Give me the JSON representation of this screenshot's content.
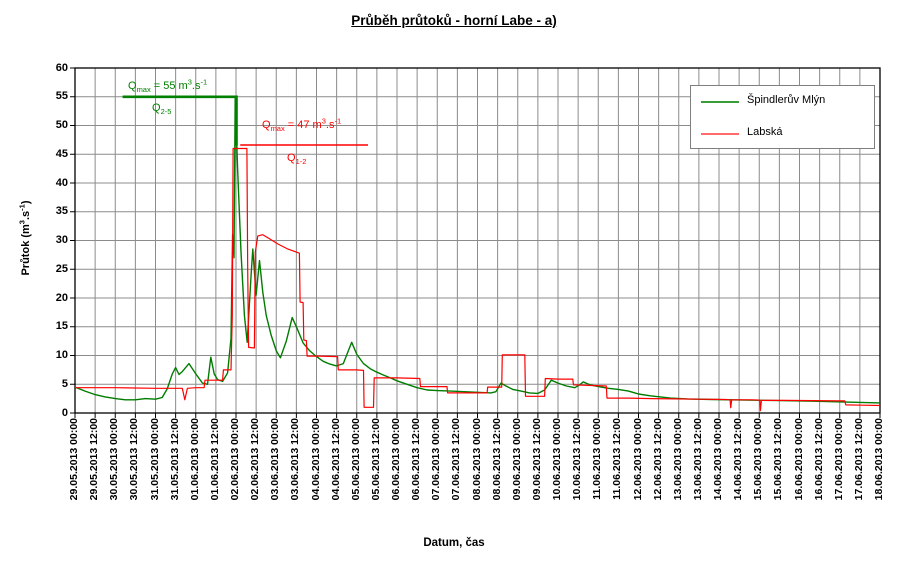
{
  "title": "Průběh průtoků - horní Labe - a)",
  "x_axis": {
    "title": "Datum, čas"
  },
  "y_axis": {
    "title_pre": "Průtok (m",
    "sup1": "3",
    "mid": ".s",
    "sup2": "-1",
    "post": ")"
  },
  "legend": {
    "items": [
      {
        "label": "Špindlerův Mlýn",
        "color": "#3a9d3a"
      },
      {
        "label": "Labská",
        "color": "#ff6b6b"
      }
    ]
  },
  "annotations": {
    "green": {
      "q": "Q",
      "q_sub": "max",
      "eq": " = 55 m",
      "sup1": "3",
      "mid": ".s",
      "sup2": "-1",
      "flow_q": "Q",
      "flow_sub": "2-5",
      "color": "#008000"
    },
    "red": {
      "q": "Q",
      "q_sub": "max",
      "eq": " = 47 m",
      "sup1": "3",
      "mid": ".s",
      "sup2": "-1",
      "flow_q": "Q",
      "flow_sub": "1-2",
      "color": "#ff0000"
    }
  },
  "chart_data": {
    "type": "line",
    "title": "Průběh průtoků - horní Labe - a)",
    "xlabel": "Datum, čas",
    "ylabel": "Průtok (m3.s-1)",
    "x_unit": "hours since 29.05.2013 00:00",
    "x_range_hours": [
      0,
      480
    ],
    "ylim": [
      0,
      60
    ],
    "y_ticks": [
      0,
      5,
      10,
      15,
      20,
      25,
      30,
      35,
      40,
      45,
      50,
      55,
      60
    ],
    "grid": "vertical every 12 h, horizontal every 5 m3.s-1",
    "legend_position": "top-right inside plot",
    "x_labels": [
      "29.05.2013 00:00",
      "29.05.2013 12:00",
      "30.05.2013 00:00",
      "30.05.2013 12:00",
      "31.05.2013 00:00",
      "31.05.2013 12:00",
      "01.06.2013 00:00",
      "01.06.2013 12:00",
      "02.06.2013 00:00",
      "02.06.2013 12:00",
      "03.06.2013 00:00",
      "03.06.2013 12:00",
      "04.06.2013 00:00",
      "04.06.2013 12:00",
      "05.06.2013 00:00",
      "05.06.2013 12:00",
      "06.06.2013 00:00",
      "06.06.2013 12:00",
      "07.06.2013 00:00",
      "07.06.2013 12:00",
      "08.06.2013 00:00",
      "08.06.2013 12:00",
      "09.06.2013 00:00",
      "09.06.2013 12:00",
      "10.06.2013 00:00",
      "10.06.2013 12:00",
      "11.06.2013 00:00",
      "11.06.2013 12:00",
      "12.06.2013 00:00",
      "12.06.2013 12:00",
      "13.06.2013 00:00",
      "13.06.2013 12:00",
      "14.06.2013 00:00",
      "14.06.2013 12:00",
      "15.06.2013 00:00",
      "15.06.2013 12:00",
      "16.06.2013 00:00",
      "16.06.2013 12:00",
      "17.06.2013 00:00",
      "17.06.2013 12:00",
      "18.06.2013 00:00"
    ],
    "series": [
      {
        "name": "Špindlerův Mlýn",
        "color": "#007c00",
        "width": 1.4,
        "max_value": 55,
        "points": [
          [
            0,
            4.5
          ],
          [
            6,
            3.8
          ],
          [
            12,
            3.2
          ],
          [
            18,
            2.8
          ],
          [
            24,
            2.5
          ],
          [
            30,
            2.3
          ],
          [
            36,
            2.3
          ],
          [
            42,
            2.5
          ],
          [
            48,
            2.4
          ],
          [
            52,
            2.7
          ],
          [
            55,
            4.2
          ],
          [
            58,
            6.8
          ],
          [
            60,
            7.9
          ],
          [
            62,
            6.7
          ],
          [
            64,
            7.2
          ],
          [
            68,
            8.6
          ],
          [
            72,
            6.8
          ],
          [
            76,
            5.2
          ],
          [
            79,
            5.0
          ],
          [
            81,
            9.7
          ],
          [
            83,
            6.8
          ],
          [
            85,
            5.8
          ],
          [
            88,
            5.5
          ],
          [
            91,
            7.0
          ],
          [
            93,
            13
          ],
          [
            94,
            31
          ],
          [
            94.8,
            27
          ],
          [
            95.5,
            55
          ],
          [
            97,
            42
          ],
          [
            99,
            28
          ],
          [
            101,
            17
          ],
          [
            102.7,
            12.3
          ],
          [
            105,
            24
          ],
          [
            106,
            28.5
          ],
          [
            108,
            20.5
          ],
          [
            110,
            26.5
          ],
          [
            112,
            21
          ],
          [
            114,
            17
          ],
          [
            117,
            13.5
          ],
          [
            120,
            10.8
          ],
          [
            122.5,
            9.6
          ],
          [
            126,
            12.5
          ],
          [
            129.5,
            16.6
          ],
          [
            132,
            15
          ],
          [
            136,
            12.2
          ],
          [
            140,
            10.8
          ],
          [
            144,
            9.8
          ],
          [
            148,
            9.0
          ],
          [
            152,
            8.5
          ],
          [
            156,
            8.2
          ],
          [
            160,
            8.6
          ],
          [
            165,
            12.3
          ],
          [
            168,
            10.2
          ],
          [
            172,
            8.6
          ],
          [
            176,
            7.7
          ],
          [
            180,
            7.1
          ],
          [
            184,
            6.6
          ],
          [
            188,
            6.1
          ],
          [
            192,
            5.6
          ],
          [
            198,
            5.0
          ],
          [
            204,
            4.4
          ],
          [
            210,
            4.0
          ],
          [
            216,
            3.9
          ],
          [
            224,
            3.8
          ],
          [
            232,
            3.7
          ],
          [
            240,
            3.6
          ],
          [
            248,
            3.5
          ],
          [
            251,
            3.7
          ],
          [
            254,
            5.2
          ],
          [
            257,
            4.7
          ],
          [
            261,
            4.1
          ],
          [
            266,
            3.8
          ],
          [
            271,
            3.5
          ],
          [
            276,
            3.4
          ],
          [
            280,
            4.0
          ],
          [
            284,
            5.7
          ],
          [
            288,
            5.2
          ],
          [
            293,
            4.7
          ],
          [
            298,
            4.4
          ],
          [
            301,
            4.9
          ],
          [
            303,
            5.4
          ],
          [
            307,
            4.9
          ],
          [
            312,
            4.6
          ],
          [
            318,
            4.3
          ],
          [
            324,
            4.1
          ],
          [
            330,
            3.8
          ],
          [
            336,
            3.3
          ],
          [
            343,
            3.0
          ],
          [
            355,
            2.6
          ],
          [
            365,
            2.45
          ],
          [
            380,
            2.35
          ],
          [
            400,
            2.25
          ],
          [
            420,
            2.15
          ],
          [
            440,
            2.05
          ],
          [
            460,
            1.9
          ],
          [
            480,
            1.75
          ]
        ]
      },
      {
        "name": "Labská",
        "color": "#ff0000",
        "width": 1.2,
        "max_value": 46,
        "points": [
          [
            0,
            4.4
          ],
          [
            24,
            4.4
          ],
          [
            48,
            4.3
          ],
          [
            64,
            4.3
          ],
          [
            65.5,
            2.3
          ],
          [
            67,
            4.3
          ],
          [
            72,
            4.4
          ],
          [
            77,
            4.4
          ],
          [
            77.5,
            5.7
          ],
          [
            88,
            5.7
          ],
          [
            88.5,
            7.5
          ],
          [
            93,
            7.5
          ],
          [
            93.8,
            17
          ],
          [
            94.3,
            46
          ],
          [
            98,
            46
          ],
          [
            102.5,
            46
          ],
          [
            103,
            25
          ],
          [
            103.5,
            11.4
          ],
          [
            107,
            11.3
          ],
          [
            107.5,
            28
          ],
          [
            109,
            30.8
          ],
          [
            112,
            31
          ],
          [
            116,
            30.3
          ],
          [
            121,
            29.4
          ],
          [
            127,
            28.5
          ],
          [
            133.8,
            27.8
          ],
          [
            134.2,
            19.3
          ],
          [
            136,
            19.2
          ],
          [
            136.4,
            12.7
          ],
          [
            138,
            12.6
          ],
          [
            138.4,
            9.9
          ],
          [
            146,
            9.9
          ],
          [
            156.6,
            9.8
          ],
          [
            157,
            7.5
          ],
          [
            168,
            7.5
          ],
          [
            172,
            7.4
          ],
          [
            172.4,
            1.0
          ],
          [
            178,
            1.0
          ],
          [
            178.4,
            6.1
          ],
          [
            192,
            6.1
          ],
          [
            205.6,
            6.0
          ],
          [
            206,
            4.6
          ],
          [
            221.8,
            4.6
          ],
          [
            222.2,
            3.5
          ],
          [
            240,
            3.5
          ],
          [
            245.7,
            3.5
          ],
          [
            246.1,
            4.5
          ],
          [
            254.4,
            4.5
          ],
          [
            254.8,
            10.1
          ],
          [
            268.2,
            10.1
          ],
          [
            268.6,
            2.9
          ],
          [
            280,
            2.9
          ],
          [
            280.4,
            6.0
          ],
          [
            288,
            5.9
          ],
          [
            296.8,
            5.9
          ],
          [
            297.2,
            4.9
          ],
          [
            306,
            4.8
          ],
          [
            316.8,
            4.7
          ],
          [
            317.2,
            2.6
          ],
          [
            330,
            2.6
          ],
          [
            344,
            2.5
          ],
          [
            358,
            2.45
          ],
          [
            372,
            2.4
          ],
          [
            388,
            2.35
          ],
          [
            390.6,
            2.3
          ],
          [
            391,
            0.9
          ],
          [
            391.6,
            2.3
          ],
          [
            404,
            2.3
          ],
          [
            408.3,
            2.25
          ],
          [
            408.7,
            0.4
          ],
          [
            409.3,
            2.2
          ],
          [
            424,
            2.2
          ],
          [
            440,
            2.15
          ],
          [
            456,
            2.1
          ],
          [
            459,
            2.1
          ],
          [
            459.6,
            1.4
          ],
          [
            470,
            1.35
          ],
          [
            480,
            1.3
          ]
        ]
      }
    ],
    "annotation_lines": [
      {
        "name": "Qmax 55 m3.s-1 (Q2-5)",
        "color": "#008000",
        "width": 2.6,
        "points": [
          [
            28.4,
            55
          ],
          [
            96.3,
            55
          ],
          [
            96.3,
            46.5
          ]
        ]
      },
      {
        "name": "Qmax 47 m3.s-1 (Q1-2)",
        "color": "#ff0000",
        "width": 1.4,
        "points": [
          [
            98.5,
            46.6
          ],
          [
            174.7,
            46.6
          ]
        ]
      }
    ]
  }
}
